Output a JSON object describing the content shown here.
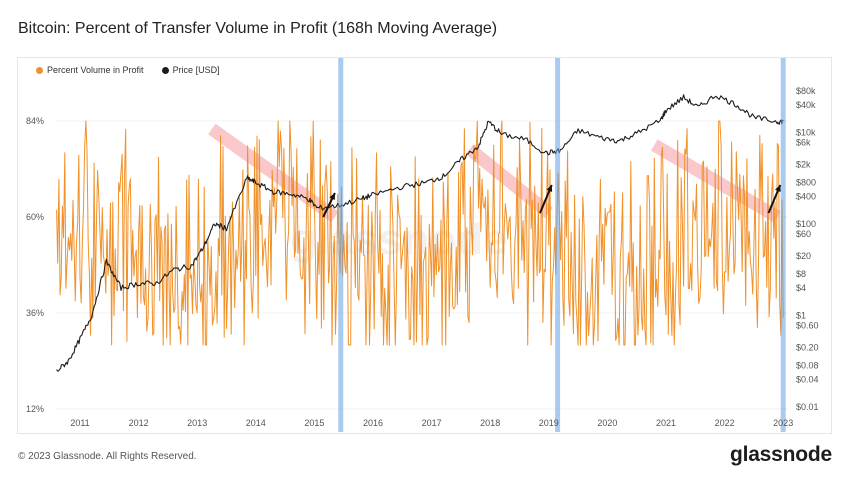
{
  "title": "Bitcoin: Percent of Transfer Volume in Profit (168h Moving Average)",
  "footer": "© 2023 Glassnode. All Rights Reserved.",
  "brand": "glassnode",
  "watermark": "glassnode",
  "chart_data": {
    "type": "line",
    "legend": [
      {
        "name": "Percent Volume in Profit",
        "color": "#f0912a"
      },
      {
        "name": "Price [USD]",
        "color": "#1c1c1c"
      }
    ],
    "x_ticks": [
      "2011",
      "2012",
      "2013",
      "2014",
      "2015",
      "2016",
      "2017",
      "2018",
      "2019",
      "2020",
      "2021",
      "2022",
      "2023"
    ],
    "left_axis": {
      "ticks": [
        "84%",
        "60%",
        "36%",
        "12%"
      ],
      "values": [
        84,
        60,
        36,
        12
      ]
    },
    "right_axis": {
      "scale": "log",
      "ticks": [
        "$80k",
        "$40k",
        "$10k",
        "$6k",
        "$2k",
        "$800",
        "$400",
        "$100",
        "$60",
        "$20",
        "$8",
        "$4",
        "$1",
        "$0.60",
        "$0.20",
        "$0.08",
        "$0.04",
        "$0.01"
      ],
      "values": [
        80000,
        40000,
        10000,
        6000,
        2000,
        800,
        400,
        100,
        60,
        20,
        8,
        4,
        1,
        0.6,
        0.2,
        0.08,
        0.04,
        0.01
      ]
    },
    "price_series": {
      "name": "Price [USD]",
      "x": [
        2010.6,
        2010.8,
        2011.0,
        2011.2,
        2011.45,
        2011.7,
        2012.0,
        2012.3,
        2012.6,
        2012.9,
        2013.1,
        2013.3,
        2013.5,
        2013.85,
        2014.0,
        2014.3,
        2014.6,
        2014.9,
        2015.05,
        2015.4,
        2015.8,
        2016.0,
        2016.5,
        2016.9,
        2017.2,
        2017.5,
        2017.8,
        2017.97,
        2018.2,
        2018.6,
        2018.95,
        2019.2,
        2019.5,
        2019.9,
        2020.2,
        2020.5,
        2020.9,
        2021.0,
        2021.3,
        2021.55,
        2021.85,
        2022.2,
        2022.5,
        2022.9,
        2023.0
      ],
      "y": [
        0.06,
        0.1,
        0.3,
        1.0,
        15,
        4,
        5,
        5,
        10,
        12,
        30,
        100,
        80,
        1000,
        800,
        500,
        450,
        350,
        220,
        250,
        350,
        430,
        650,
        800,
        1100,
        2500,
        5000,
        17000,
        9000,
        7000,
        3500,
        4000,
        11000,
        7500,
        6500,
        9500,
        18000,
        30000,
        58000,
        35000,
        65000,
        40000,
        21000,
        17000,
        17500
      ]
    },
    "profit_series": {
      "name": "Percent Volume in Profit",
      "x_range": [
        2010.6,
        2023.0
      ],
      "y_range": [
        28,
        84
      ]
    },
    "vertical_markers": [
      2015.45,
      2019.15,
      2023.0
    ],
    "trend_lines": [
      {
        "from": [
          2013.25,
          82
        ],
        "to": [
          2015.35,
          60
        ]
      },
      {
        "from": [
          2017.65,
          77
        ],
        "to": [
          2019.0,
          61
        ]
      },
      {
        "from": [
          2020.8,
          78
        ],
        "to": [
          2022.9,
          60
        ]
      }
    ],
    "arrows": [
      {
        "from": [
          2015.15,
          60
        ],
        "to": [
          2015.35,
          66
        ]
      },
      {
        "from": [
          2018.85,
          61
        ],
        "to": [
          2019.05,
          68
        ]
      },
      {
        "from": [
          2022.75,
          61
        ],
        "to": [
          2022.95,
          68
        ]
      }
    ]
  }
}
